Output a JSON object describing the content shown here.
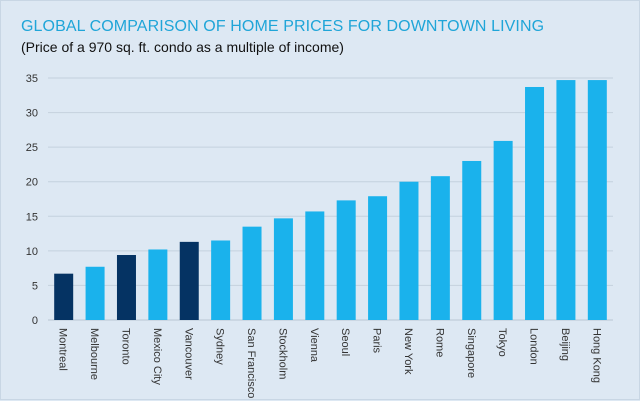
{
  "chart_data": {
    "type": "bar",
    "title": "GLOBAL COMPARISON OF HOME PRICES FOR DOWNTOWN LIVING",
    "subtitle": "(Price of a 970 sq. ft. condo as a multiple of income)",
    "categories": [
      "Montreal",
      "Melbourne",
      "Toronto",
      "Mexico City",
      "Vancouver",
      "Sydney",
      "San Francisco",
      "Stockholm",
      "Vienna",
      "Seoul",
      "Paris",
      "New York",
      "Rome",
      "Singapore",
      "Tokyo",
      "London",
      "Beijing",
      "Hong Kong"
    ],
    "values": [
      6.7,
      7.7,
      9.4,
      10.2,
      11.3,
      11.5,
      13.5,
      14.7,
      15.7,
      17.3,
      17.9,
      20.0,
      20.8,
      23.0,
      25.9,
      33.7,
      34.7,
      34.7
    ],
    "highlight": [
      "Montreal",
      "Toronto",
      "Vancouver"
    ],
    "ylim": [
      0,
      35
    ],
    "yticks": [
      0,
      5,
      10,
      15,
      20,
      25,
      30,
      35
    ],
    "grid": true,
    "xlabel": "",
    "ylabel": "",
    "colors": {
      "bar": "#1ab2ec",
      "highlight": "#053363",
      "grid": "#c4d1de",
      "tick_text": "#333333",
      "title": "#1fa5d8"
    }
  }
}
